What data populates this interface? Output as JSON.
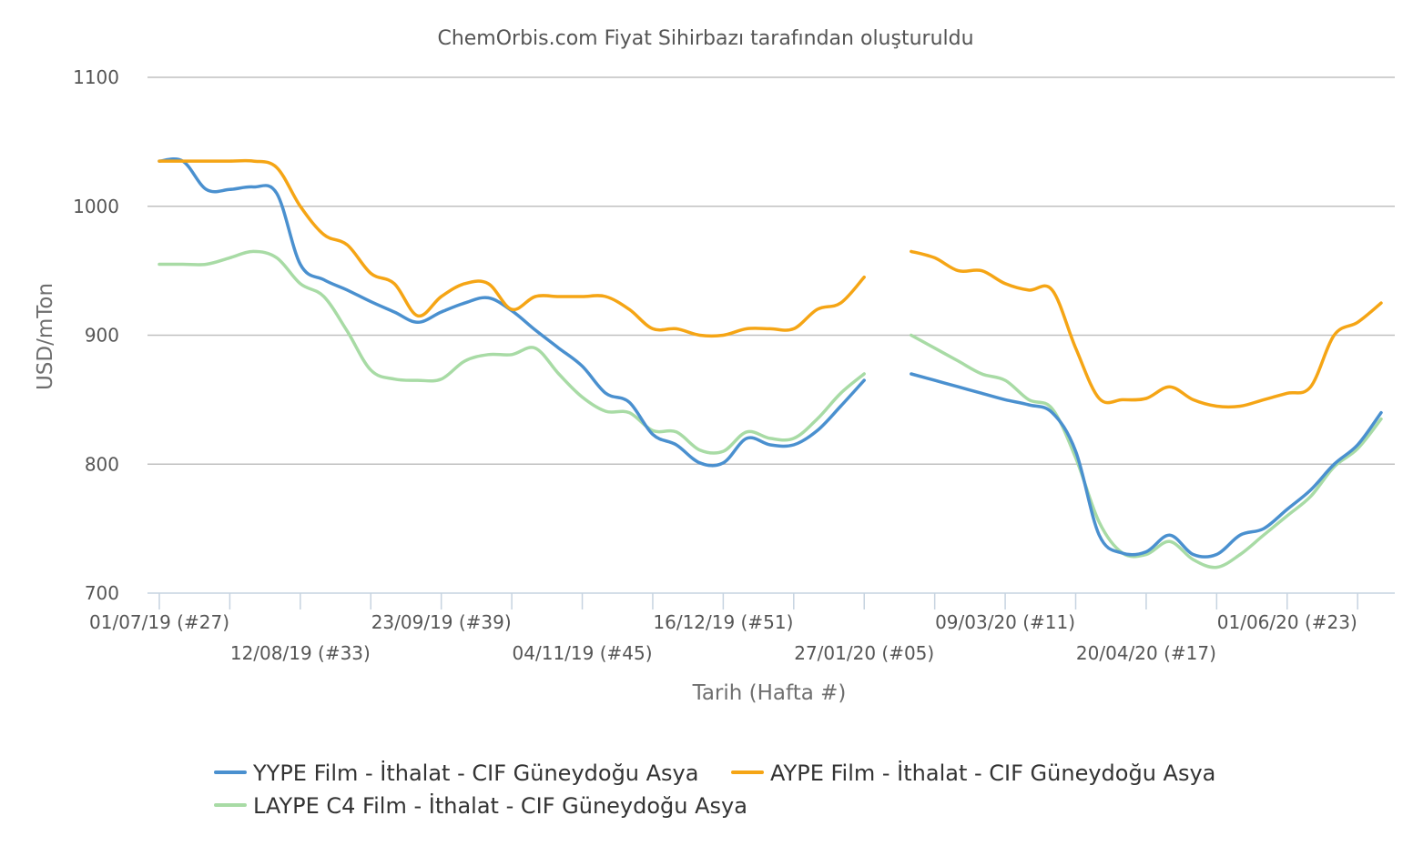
{
  "chart_data": {
    "type": "line",
    "title": "ChemOrbis.com Fiyat Sihirbazı tarafından oluşturuldu",
    "xlabel": "Tarih (Hafta #)",
    "ylabel": "USD/mTon",
    "ylim": [
      700,
      1100
    ],
    "y_ticks": [
      "700",
      "800",
      "900",
      "1000",
      "1100"
    ],
    "grid": true,
    "legend_position": "bottom",
    "x_week_count": 52,
    "x_tick_labels": [
      {
        "week": 0,
        "label": "01/07/19 (#27)"
      },
      {
        "week": 6,
        "label": "12/08/19 (#33)"
      },
      {
        "week": 12,
        "label": "23/09/19 (#39)"
      },
      {
        "week": 18,
        "label": "04/11/19 (#45)"
      },
      {
        "week": 24,
        "label": "16/12/19 (#51)"
      },
      {
        "week": 30,
        "label": "27/01/20 (#05)"
      },
      {
        "week": 36,
        "label": "09/03/20 (#11)"
      },
      {
        "week": 42,
        "label": "20/04/20 (#17)"
      },
      {
        "week": 48,
        "label": "01/06/20 (#23)"
      }
    ],
    "series": [
      {
        "name": "YYPE Film - İthalat - CIF Güneydoğu Asya",
        "color": "#4a90cf",
        "segments": [
          [
            [
              0,
              1035
            ],
            [
              1,
              1035
            ],
            [
              2,
              1013
            ],
            [
              3,
              1013
            ],
            [
              4,
              1015
            ],
            [
              5,
              1010
            ],
            [
              6,
              955
            ],
            [
              7,
              943
            ],
            [
              8,
              935
            ],
            [
              9,
              926
            ],
            [
              10,
              918
            ],
            [
              11,
              910
            ],
            [
              12,
              918
            ],
            [
              13,
              925
            ],
            [
              14,
              929
            ],
            [
              15,
              919
            ],
            [
              16,
              904
            ],
            [
              17,
              890
            ],
            [
              18,
              876
            ],
            [
              19,
              855
            ],
            [
              20,
              848
            ],
            [
              21,
              823
            ],
            [
              22,
              815
            ],
            [
              23,
              801
            ],
            [
              24,
              801
            ],
            [
              25,
              820
            ],
            [
              26,
              815
            ],
            [
              27,
              815
            ],
            [
              28,
              826
            ],
            [
              29,
              845
            ],
            [
              30,
              865
            ]
          ],
          [
            [
              32,
              870
            ],
            [
              33,
              865
            ],
            [
              34,
              860
            ],
            [
              35,
              855
            ],
            [
              36,
              850
            ],
            [
              37,
              846
            ],
            [
              38,
              840
            ],
            [
              39,
              810
            ],
            [
              40,
              745
            ],
            [
              41,
              731
            ],
            [
              42,
              732
            ],
            [
              43,
              745
            ],
            [
              44,
              730
            ],
            [
              45,
              730
            ],
            [
              46,
              745
            ],
            [
              47,
              750
            ],
            [
              48,
              765
            ],
            [
              49,
              780
            ],
            [
              50,
              800
            ],
            [
              51,
              815
            ],
            [
              52,
              840
            ]
          ]
        ]
      },
      {
        "name": "AYPE Film - İthalat - CIF Güneydoğu Asya",
        "color": "#f5a515",
        "segments": [
          [
            [
              0,
              1035
            ],
            [
              1,
              1035
            ],
            [
              2,
              1035
            ],
            [
              3,
              1035
            ],
            [
              4,
              1035
            ],
            [
              5,
              1030
            ],
            [
              6,
              1000
            ],
            [
              7,
              978
            ],
            [
              8,
              970
            ],
            [
              9,
              948
            ],
            [
              10,
              940
            ],
            [
              11,
              915
            ],
            [
              12,
              930
            ],
            [
              13,
              940
            ],
            [
              14,
              940
            ],
            [
              15,
              920
            ],
            [
              16,
              930
            ],
            [
              17,
              930
            ],
            [
              18,
              930
            ],
            [
              19,
              930
            ],
            [
              20,
              920
            ],
            [
              21,
              905
            ],
            [
              22,
              905
            ],
            [
              23,
              900
            ],
            [
              24,
              900
            ],
            [
              25,
              905
            ],
            [
              26,
              905
            ],
            [
              27,
              905
            ],
            [
              28,
              920
            ],
            [
              29,
              925
            ],
            [
              30,
              945
            ]
          ],
          [
            [
              32,
              965
            ],
            [
              33,
              960
            ],
            [
              34,
              950
            ],
            [
              35,
              950
            ],
            [
              36,
              940
            ],
            [
              37,
              935
            ],
            [
              38,
              935
            ],
            [
              39,
              890
            ],
            [
              40,
              851
            ],
            [
              41,
              850
            ],
            [
              42,
              851
            ],
            [
              43,
              860
            ],
            [
              44,
              850
            ],
            [
              45,
              845
            ],
            [
              46,
              845
            ],
            [
              47,
              850
            ],
            [
              48,
              855
            ],
            [
              49,
              860
            ],
            [
              50,
              900
            ],
            [
              51,
              910
            ],
            [
              52,
              925
            ]
          ]
        ]
      },
      {
        "name": "LAYPE C4 Film - İthalat - CIF Güneydoğu Asya",
        "color": "#a8dba5",
        "segments": [
          [
            [
              0,
              955
            ],
            [
              1,
              955
            ],
            [
              2,
              955
            ],
            [
              3,
              960
            ],
            [
              4,
              965
            ],
            [
              5,
              960
            ],
            [
              6,
              940
            ],
            [
              7,
              930
            ],
            [
              8,
              903
            ],
            [
              9,
              873
            ],
            [
              10,
              866
            ],
            [
              11,
              865
            ],
            [
              12,
              866
            ],
            [
              13,
              880
            ],
            [
              14,
              885
            ],
            [
              15,
              885
            ],
            [
              16,
              890
            ],
            [
              17,
              870
            ],
            [
              18,
              852
            ],
            [
              19,
              841
            ],
            [
              20,
              840
            ],
            [
              21,
              826
            ],
            [
              22,
              825
            ],
            [
              23,
              811
            ],
            [
              24,
              810
            ],
            [
              25,
              825
            ],
            [
              26,
              820
            ],
            [
              27,
              820
            ],
            [
              28,
              835
            ],
            [
              29,
              855
            ],
            [
              30,
              870
            ]
          ],
          [
            [
              32,
              900
            ],
            [
              33,
              890
            ],
            [
              34,
              880
            ],
            [
              35,
              870
            ],
            [
              36,
              865
            ],
            [
              37,
              850
            ],
            [
              38,
              843
            ],
            [
              39,
              805
            ],
            [
              40,
              755
            ],
            [
              41,
              731
            ],
            [
              42,
              730
            ],
            [
              43,
              740
            ],
            [
              44,
              726
            ],
            [
              45,
              720
            ],
            [
              46,
              730
            ],
            [
              47,
              745
            ],
            [
              48,
              760
            ],
            [
              49,
              775
            ],
            [
              50,
              798
            ],
            [
              51,
              812
            ],
            [
              52,
              835
            ]
          ]
        ]
      }
    ]
  }
}
